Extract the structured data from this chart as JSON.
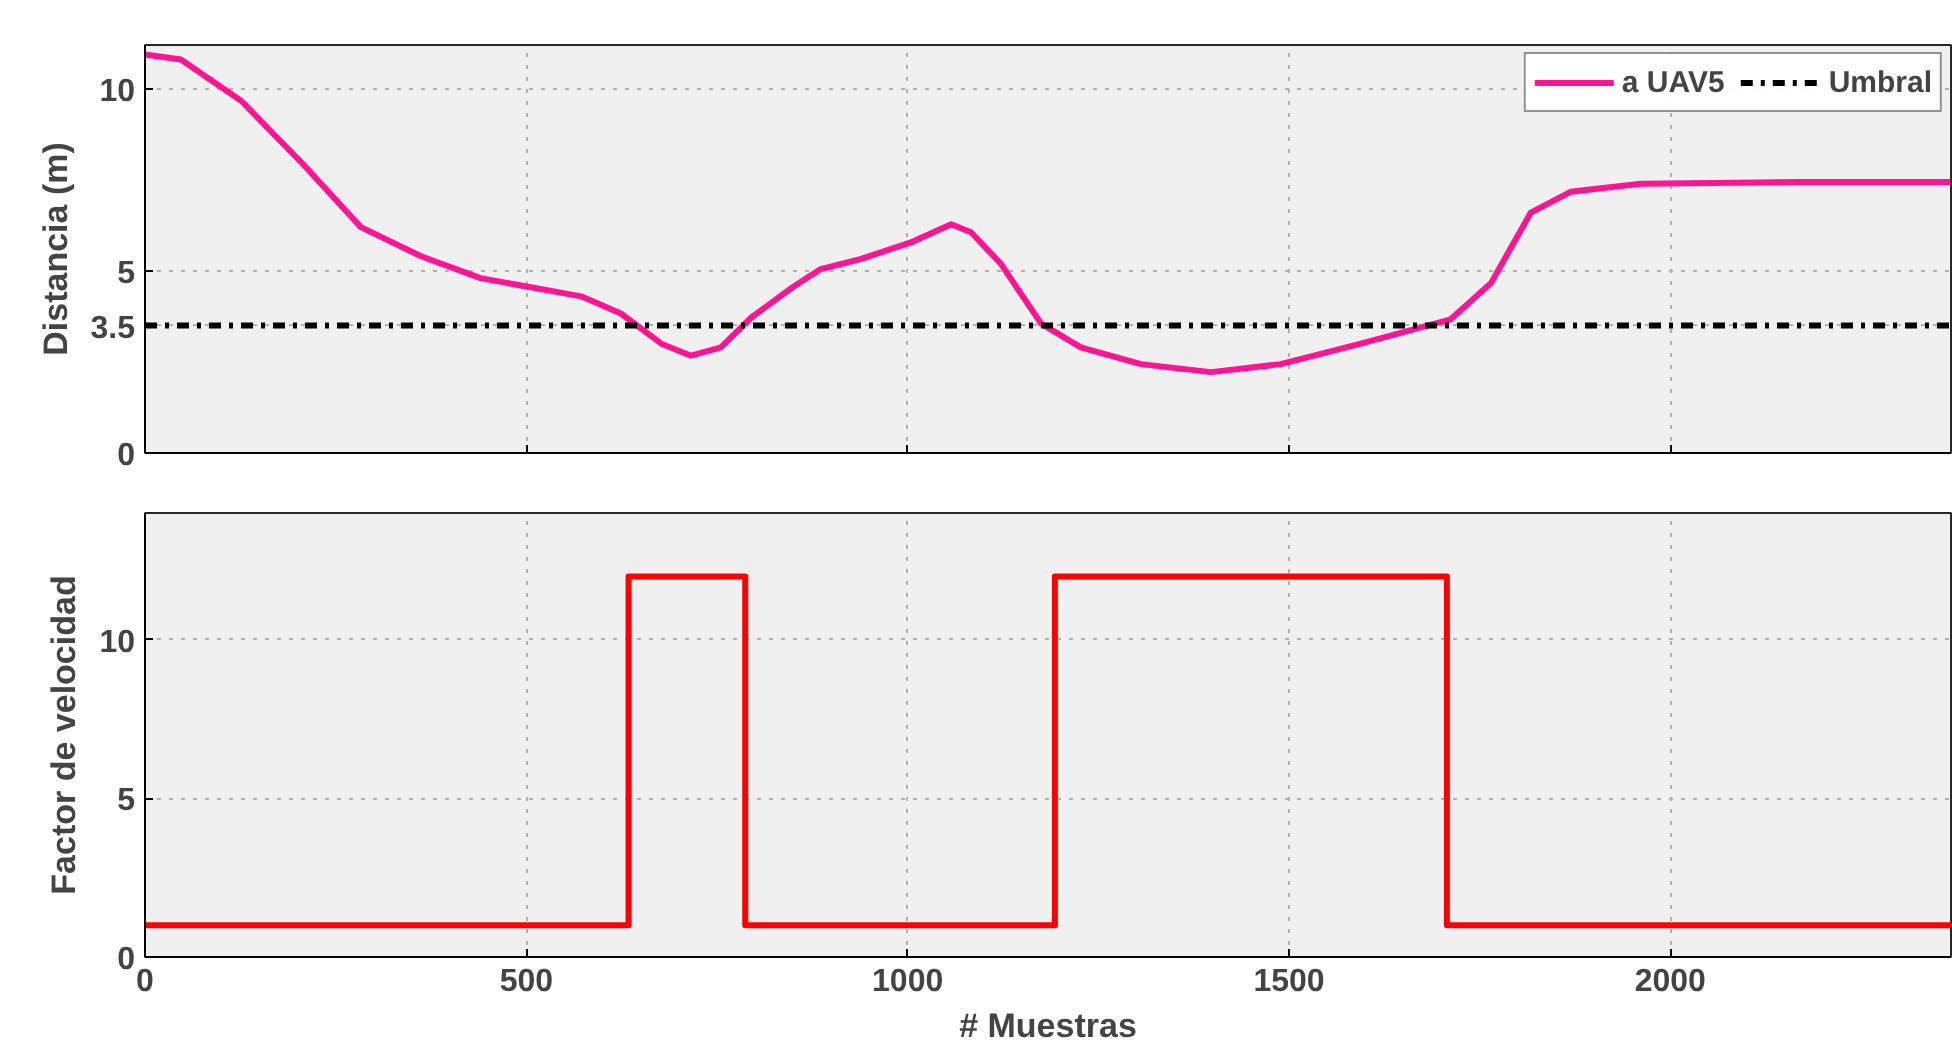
{
  "chart_data": [
    {
      "type": "line",
      "ylabel": "Distancia (m)",
      "x": [
        0,
        47,
        126,
        204,
        283,
        362,
        440,
        506,
        572,
        624,
        677,
        716,
        755,
        795,
        849,
        886,
        939,
        1004,
        1057,
        1083,
        1122,
        1175,
        1227,
        1306,
        1398,
        1489,
        1594,
        1712,
        1765,
        1817,
        1869,
        1961,
        2171,
        2367
      ],
      "series": [
        {
          "name": "a UAV5",
          "color": "#ff1493",
          "values": [
            10.94,
            10.8,
            9.67,
            8.0,
            6.2,
            5.4,
            4.8,
            4.55,
            4.3,
            3.83,
            3.0,
            2.67,
            2.9,
            3.72,
            4.55,
            5.05,
            5.33,
            5.78,
            6.28,
            6.06,
            5.2,
            3.55,
            2.9,
            2.44,
            2.22,
            2.44,
            3.0,
            3.67,
            4.67,
            6.6,
            7.17,
            7.39,
            7.44,
            7.44
          ]
        }
      ],
      "ref_lines": [
        {
          "axis": "y",
          "value": 3.5,
          "label": "Umbral",
          "color": "#000000",
          "line_style": "dashdot"
        }
      ],
      "xlim": [
        0,
        2368
      ],
      "xticks": [
        0,
        500,
        1000,
        1500,
        2000
      ],
      "ylim": [
        0,
        11.2
      ],
      "yticks": [
        0,
        3.5,
        5,
        10
      ],
      "tick_labels": "y",
      "grid": true,
      "legend": "top right"
    },
    {
      "type": "step",
      "ylabel": "Factor de velocidad",
      "xlabel": "# Muestras",
      "x": [
        0,
        634,
        787,
        1193,
        1707,
        2368
      ],
      "series": [
        {
          "color": "#ff0000",
          "values": [
            1,
            12,
            1,
            12,
            1,
            1
          ]
        }
      ],
      "xlim": [
        0,
        2368
      ],
      "xticks": [
        0,
        500,
        1000,
        1500,
        2000
      ],
      "ylim": [
        0,
        14
      ],
      "yticks": [
        0,
        5,
        10
      ],
      "grid": true
    }
  ]
}
